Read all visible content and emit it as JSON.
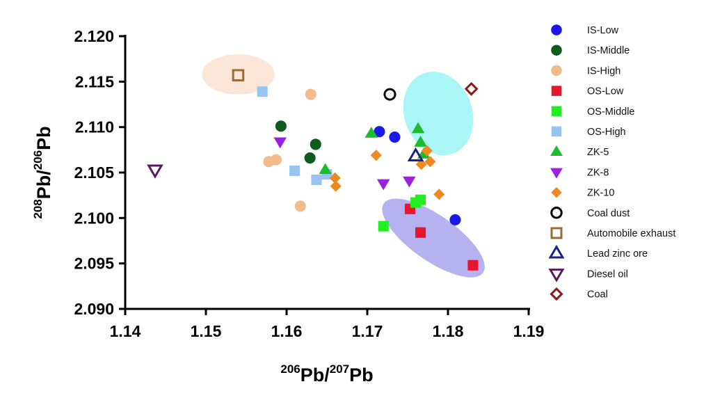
{
  "chart_data": {
    "type": "scatter",
    "xlabel": {
      "sup": "206",
      "base": "Pb/",
      "sup2": "207",
      "end": "Pb"
    },
    "ylabel": {
      "sup": "208",
      "base": "Pb/",
      "sup2": "206",
      "end": "Pb"
    },
    "xlim": [
      1.14,
      1.19
    ],
    "ylim": [
      2.09,
      2.12
    ],
    "xticks": [
      "1.14",
      "1.15",
      "1.16",
      "1.17",
      "1.18",
      "1.19"
    ],
    "yticks": [
      "2.090",
      "2.095",
      "2.100",
      "2.105",
      "2.110",
      "2.115",
      "2.120"
    ],
    "grid": false,
    "legend_position": "right",
    "ellipses": [
      {
        "cx": 1.154,
        "cy": 2.1158,
        "rx": 0.0045,
        "ry": 0.0022,
        "rotate": 0,
        "color": "#fbe5d6"
      },
      {
        "cx": 1.1788,
        "cy": 2.1115,
        "rx": 0.0042,
        "ry": 0.0047,
        "rotate": -20,
        "color": "#aaf5f5"
      },
      {
        "cx": 1.1782,
        "cy": 2.0978,
        "rx": 0.0075,
        "ry": 0.0025,
        "rotate": 35,
        "color": "#b5b2ef"
      }
    ],
    "series": [
      {
        "name": "IS-Low",
        "marker": "circle",
        "color": "#1a1ae6",
        "filled": true,
        "points": [
          [
            1.1715,
            2.1095
          ],
          [
            1.1734,
            2.1089
          ],
          [
            1.1809,
            2.0998
          ]
        ]
      },
      {
        "name": "IS-Middle",
        "marker": "circle",
        "color": "#0d5c1e",
        "filled": true,
        "points": [
          [
            1.1593,
            2.1101
          ],
          [
            1.1636,
            2.1081
          ],
          [
            1.1629,
            2.1066
          ]
        ]
      },
      {
        "name": "IS-High",
        "marker": "circle",
        "color": "#f2bb8c",
        "filled": true,
        "points": [
          [
            1.163,
            2.1136
          ],
          [
            1.1578,
            2.1062
          ],
          [
            1.1587,
            2.1064
          ],
          [
            1.1617,
            2.1013
          ]
        ]
      },
      {
        "name": "OS-Low",
        "marker": "square",
        "color": "#e6162e",
        "filled": true,
        "points": [
          [
            1.1753,
            2.101
          ],
          [
            1.1766,
            2.0984
          ],
          [
            1.1831,
            2.0948
          ]
        ]
      },
      {
        "name": "OS-Middle",
        "marker": "square",
        "color": "#22ee22",
        "filled": true,
        "points": [
          [
            1.172,
            2.0991
          ],
          [
            1.176,
            2.1017
          ],
          [
            1.1766,
            2.102
          ]
        ]
      },
      {
        "name": "OS-High",
        "marker": "square",
        "color": "#98c4f2",
        "filled": true,
        "points": [
          [
            1.157,
            2.1139
          ],
          [
            1.161,
            2.1052
          ],
          [
            1.1637,
            2.1042
          ],
          [
            1.165,
            2.1048
          ]
        ]
      },
      {
        "name": "ZK-5",
        "marker": "triangle",
        "color": "#1dbb2e",
        "filled": true,
        "points": [
          [
            1.1705,
            2.1093
          ],
          [
            1.1763,
            2.1098
          ],
          [
            1.1766,
            2.1083
          ],
          [
            1.177,
            2.107
          ],
          [
            1.1648,
            2.1053
          ]
        ]
      },
      {
        "name": "ZK-8",
        "marker": "triangle-down",
        "color": "#9922dd",
        "filled": true,
        "points": [
          [
            1.1592,
            2.1084
          ],
          [
            1.172,
            2.1038
          ],
          [
            1.1752,
            2.1041
          ]
        ]
      },
      {
        "name": "ZK-10",
        "marker": "diamond",
        "color": "#ec8a22",
        "filled": true,
        "points": [
          [
            1.166,
            2.1044
          ],
          [
            1.1661,
            2.1035
          ],
          [
            1.1711,
            2.1069
          ],
          [
            1.1774,
            2.1074
          ],
          [
            1.1778,
            2.1062
          ],
          [
            1.1767,
            2.1059
          ],
          [
            1.1789,
            2.1026
          ]
        ]
      },
      {
        "name": "Coal dust",
        "marker": "circle",
        "color": "#000000",
        "filled": false,
        "points": [
          [
            1.1728,
            2.1136
          ]
        ]
      },
      {
        "name": "Automobile exhaust",
        "marker": "square",
        "color": "#9a6b3a",
        "filled": false,
        "points": [
          [
            1.154,
            2.1157
          ]
        ]
      },
      {
        "name": "Lead zinc ore",
        "marker": "triangle",
        "color": "#1a237e",
        "filled": false,
        "points": [
          [
            1.176,
            2.1068
          ]
        ]
      },
      {
        "name": "Diesel oil",
        "marker": "triangle-down",
        "color": "#5b1a5b",
        "filled": false,
        "points": [
          [
            1.1437,
            2.1053
          ]
        ]
      },
      {
        "name": "Coal",
        "marker": "diamond",
        "color": "#8b1a1a",
        "filled": false,
        "points": [
          [
            1.1829,
            2.1142
          ]
        ]
      }
    ]
  }
}
